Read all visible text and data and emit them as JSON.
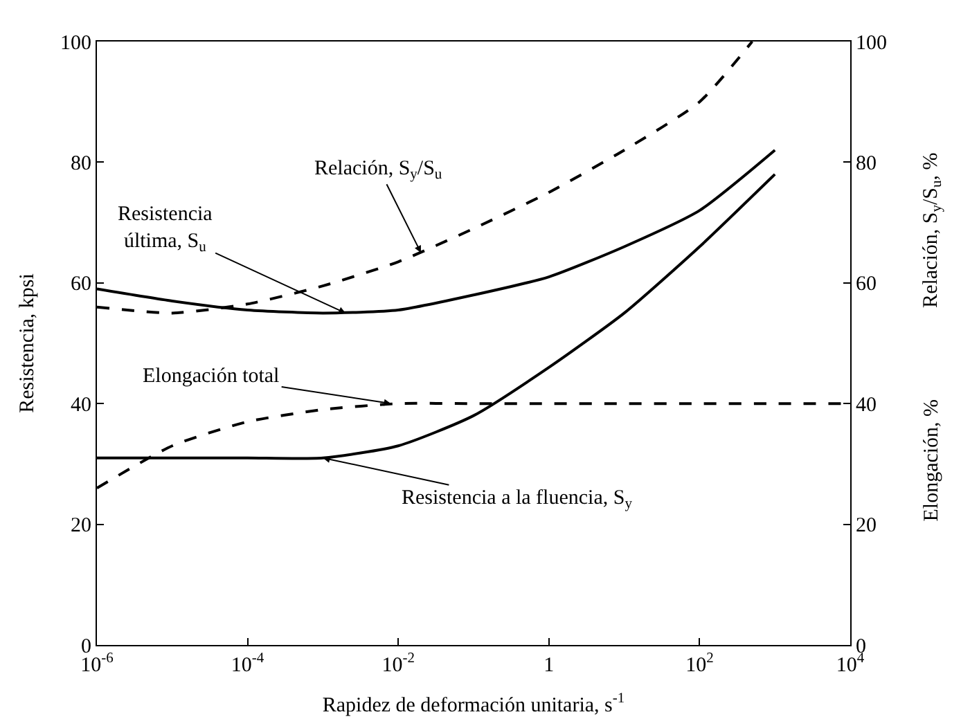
{
  "chart_data": {
    "type": "line",
    "xlabel": "Rapidez de deformación unitaria, s$^{-1}$",
    "ylabel": "Resistencia, kpsi",
    "y2label": "Relación, S$_{y}$/S$_{u}$, %",
    "log": "x",
    "marker": "none",
    "xlim": [
      1e-06,
      10000
    ],
    "xticks": [
      {
        "value": 1e-06,
        "label": "10$^{-6}$"
      },
      {
        "value": 0.0001,
        "label": "10$^{-4}$"
      },
      {
        "value": 0.01,
        "label": "10$^{-2}$"
      },
      1,
      {
        "value": 100,
        "label": "10$^{2}$"
      },
      {
        "value": 10000,
        "label": "10$^{4}$"
      }
    ],
    "ylim": [
      0,
      100
    ],
    "yticks": [
      0,
      20,
      40,
      60,
      80,
      100
    ],
    "y2lim": [
      0,
      100
    ],
    "y2ticks": [
      0,
      20,
      40,
      60,
      80,
      100
    ],
    "series": [
      {
        "color": "#000000",
        "line_style": "solid",
        "x": [
          1e-06,
          1e-05,
          0.0001,
          0.001,
          0.01,
          0.1,
          1,
          10,
          100,
          1000
        ],
        "values": [
          59,
          57,
          55.5,
          55,
          55.5,
          58,
          61,
          66,
          72,
          82
        ]
      },
      {
        "color": "#000000",
        "line_style": "solid",
        "x": [
          1e-06,
          1e-05,
          0.0001,
          0.001,
          0.01,
          0.1,
          1,
          10,
          100,
          1000
        ],
        "values": [
          31,
          31,
          31,
          31,
          33,
          38,
          46,
          55,
          66,
          78
        ]
      },
      {
        "color": "#000000",
        "line_style": "dashed",
        "x": [
          1e-06,
          1e-05,
          0.0001,
          0.001,
          0.01,
          0.1,
          1,
          10,
          100,
          500
        ],
        "values": [
          56,
          55,
          56.5,
          59.5,
          63.5,
          69,
          75,
          82,
          90,
          100
        ]
      },
      {
        "color": "#000000",
        "line_style": "dashed",
        "x": [
          1e-06,
          1e-05,
          0.0001,
          0.001,
          0.01,
          0.1,
          1,
          10,
          100,
          1000,
          10000
        ],
        "values": [
          26,
          33,
          37,
          39,
          40,
          40,
          40,
          40,
          40,
          40,
          40
        ]
      }
    ],
    "annotations": [
      {
        "text": "Relación, S$_{y}$/S$_{u}$",
        "x": 0.02,
        "y": 65
      },
      {
        "text": "Resistencia\núltima, S$_{u}$",
        "x": 0.002,
        "y": 55
      },
      {
        "text": "Elongación total",
        "x": 0.008,
        "y": 40
      },
      {
        "text": "Resistencia a la fluencia, S$_{y}$",
        "x": 0.001,
        "y": 31
      },
      "Elongación, %"
    ]
  }
}
